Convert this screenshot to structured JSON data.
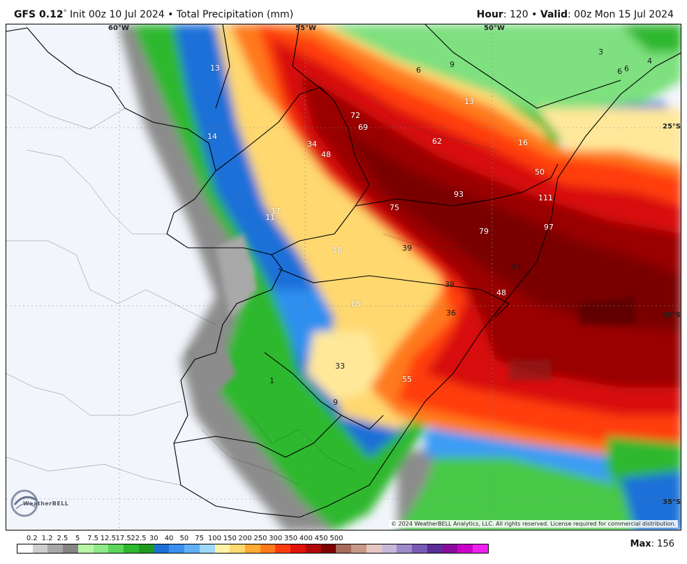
{
  "header": {
    "model": "GFS 0.12",
    "deg": "°",
    "init": " Init 00z 10 Jul 2024 • Total Precipitation (mm)",
    "hour_label": "Hour",
    "hour_value": ": 120 • ",
    "valid_label": "Valid",
    "valid_value": ": 00z Mon 15 Jul 2024"
  },
  "coords": {
    "lon_60": "60°W",
    "lon_55": "55°W",
    "lon_50": "50°W",
    "lat_25": "25°S",
    "lat_30": "30°S",
    "lat_35": "35°S"
  },
  "values": {
    "v13a": "13",
    "v14": "14",
    "v17": "17",
    "v11": "11",
    "v18a": "18",
    "v18b": "18",
    "v72": "72",
    "v69": "69",
    "v34": "34",
    "v48a": "48",
    "v62": "62",
    "v16": "16",
    "v50": "50",
    "v93": "93",
    "v111": "111",
    "v75": "75",
    "v79": "79",
    "v97": "97",
    "v39a": "39",
    "v43": "43",
    "v39b": "39",
    "v48b": "48",
    "v36": "36",
    "v33": "33",
    "v55": "55",
    "v9a": "9",
    "v1": "1",
    "v6a": "6",
    "v9b": "9",
    "v13b": "13",
    "v3": "3",
    "v4": "4",
    "v6b": "6",
    "v6c": "6"
  },
  "copyright": "© 2024 WeatherBELL Analytics, LLC. All rights reserved. License required for commercial distribution.",
  "logo_text": "WeatherBELL",
  "legend": {
    "ticks": [
      "0.2",
      "1.2",
      "2.5",
      "5",
      "7.5",
      "12.5",
      "17.5",
      "22.5",
      "30",
      "40",
      "50",
      "75",
      "100",
      "150",
      "200",
      "250",
      "300",
      "350",
      "400",
      "450",
      "500"
    ],
    "colors": [
      "#ffffff",
      "#cfcfcf",
      "#a8a8a8",
      "#858585",
      "#b8f5a8",
      "#8fe88a",
      "#5ad65a",
      "#2db82d",
      "#1f9a1f",
      "#1c6fd6",
      "#3b8ff0",
      "#5fb0f5",
      "#9fd8f8",
      "#fff3a8",
      "#ffd870",
      "#ffaa33",
      "#ff7a1a",
      "#ff3c0f",
      "#e0120a",
      "#b00808",
      "#7e0000",
      "#a86a5a",
      "#c89888",
      "#e6c8c0",
      "#c8b8d8",
      "#9f8ac8",
      "#7a5ab8",
      "#5c2c98",
      "#8a0a9a",
      "#c800c8",
      "#ee22ee"
    ],
    "max_label": "Max",
    "max_value": ": 156"
  }
}
